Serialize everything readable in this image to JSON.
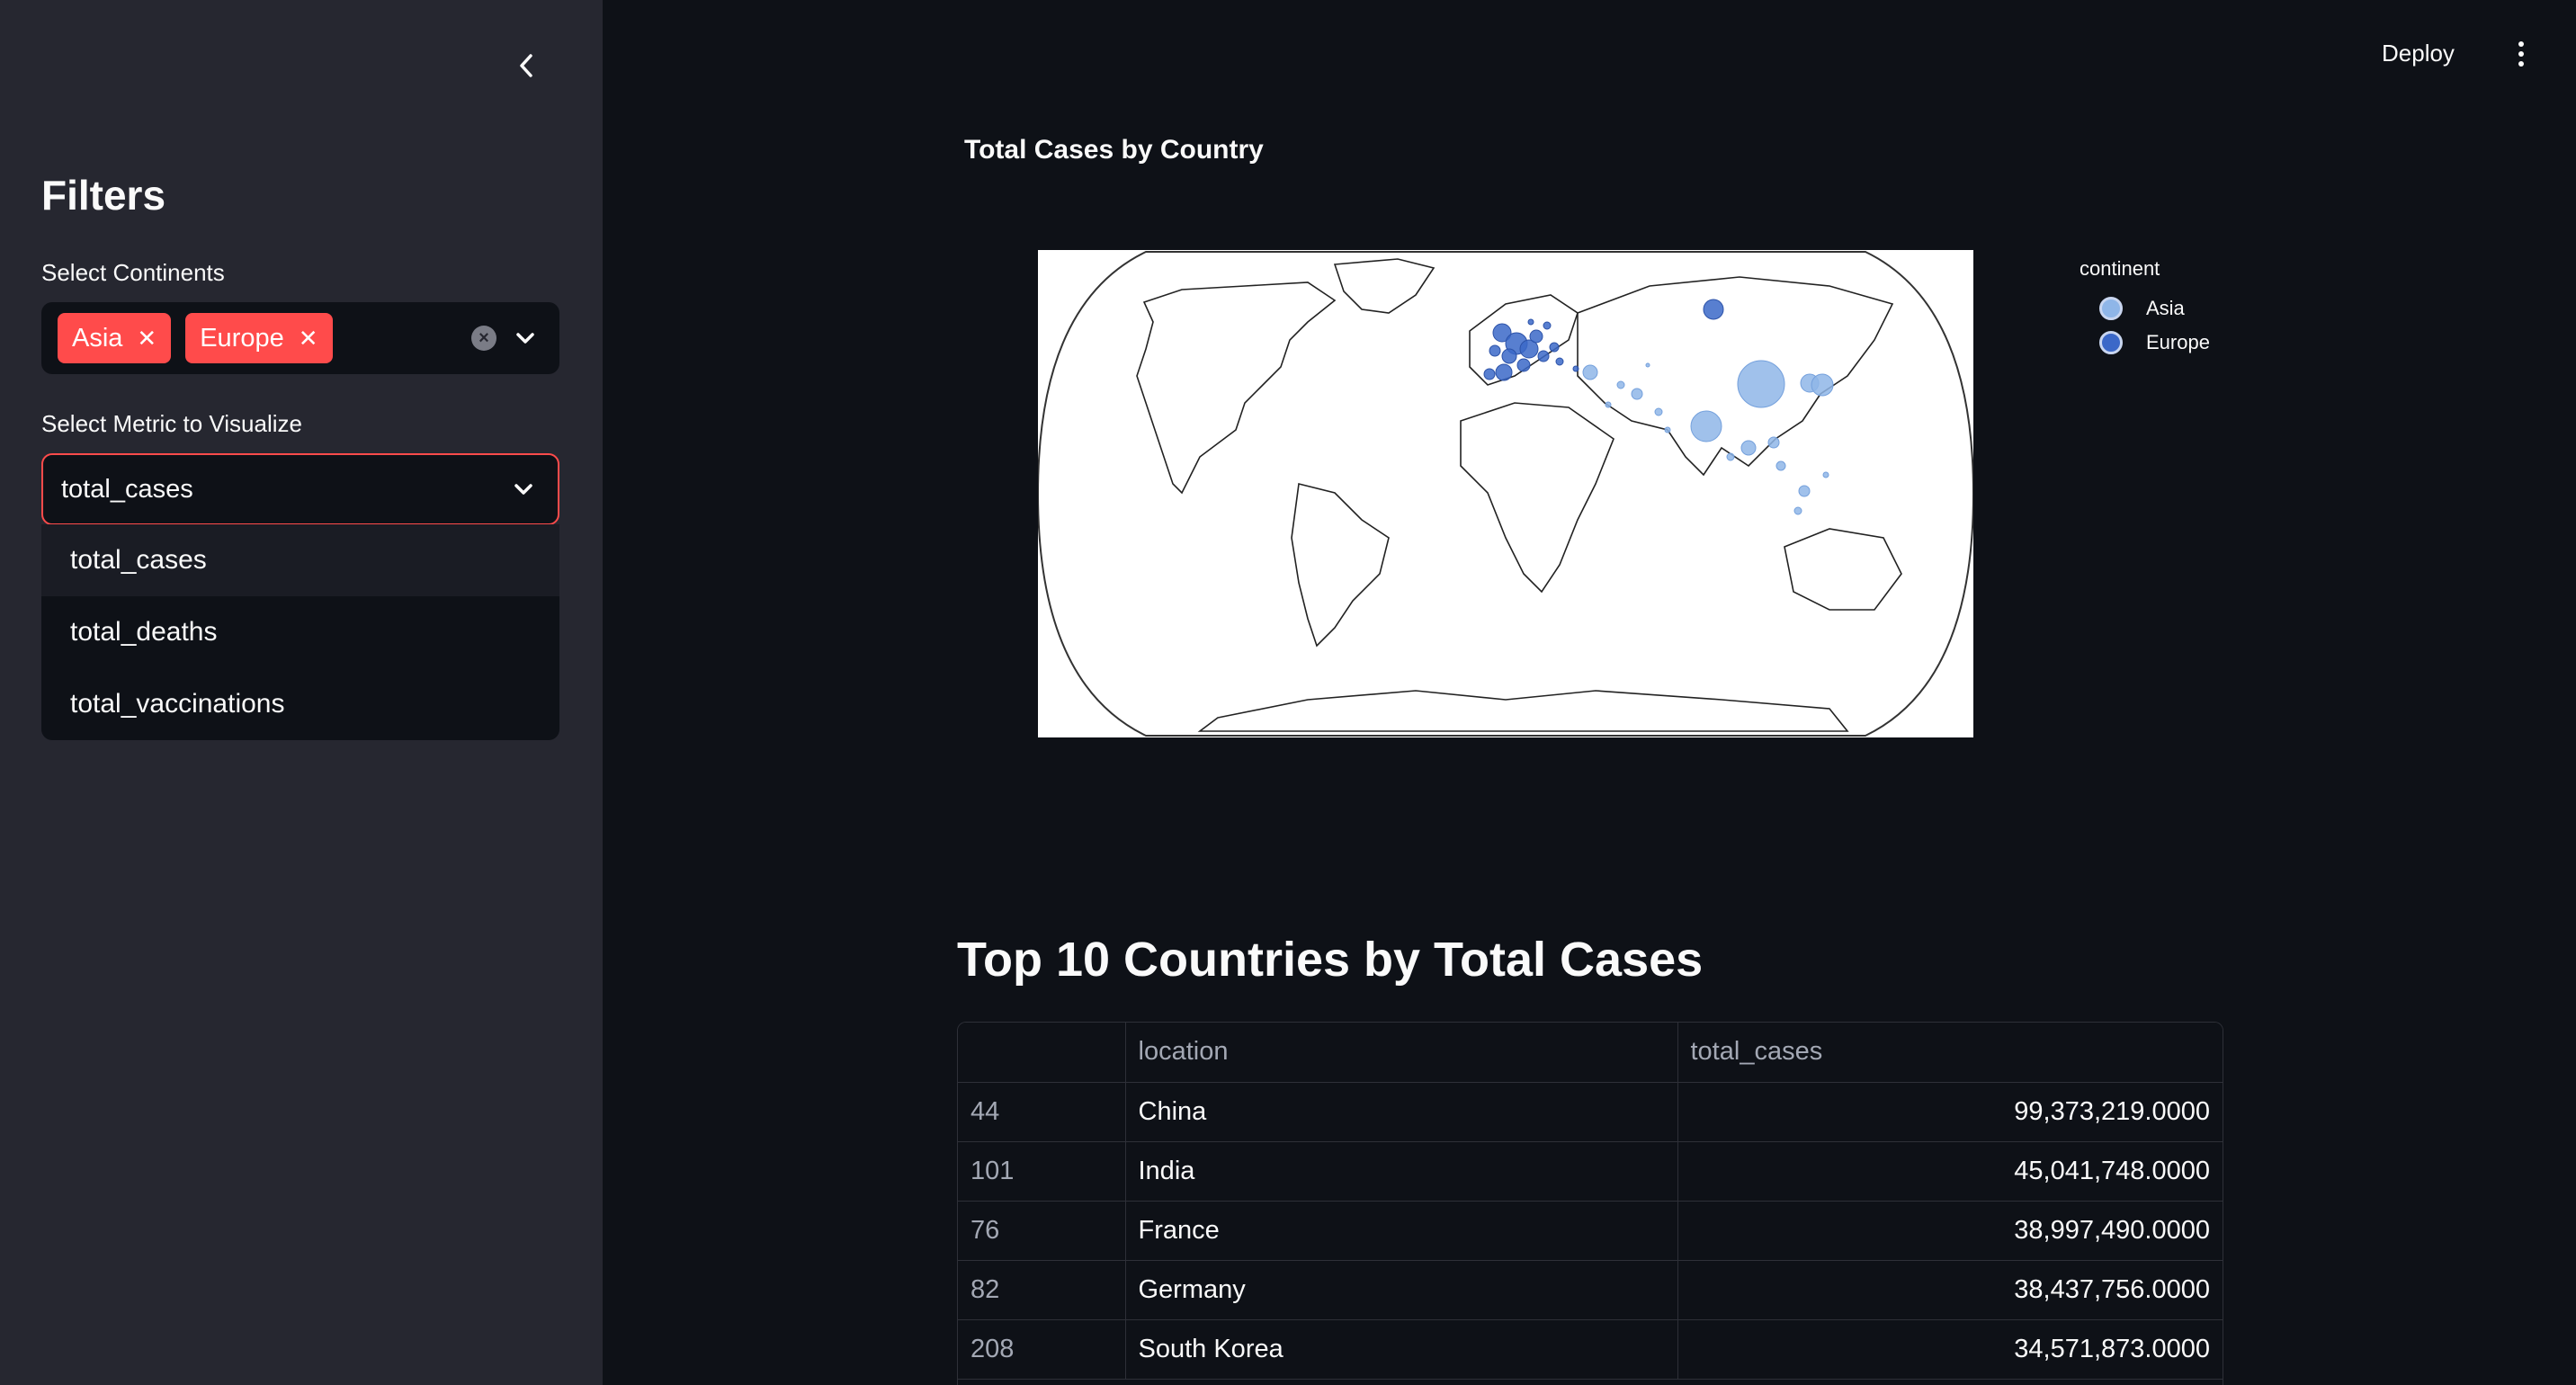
{
  "sidebar": {
    "title": "Filters",
    "continents_label": "Select Continents",
    "selected_continents": [
      "Asia",
      "Europe"
    ],
    "metric_label": "Select Metric to Visualize",
    "metric_value": "total_cases",
    "metric_options": [
      "total_cases",
      "total_deaths",
      "total_vaccinations"
    ]
  },
  "header": {
    "deploy_label": "Deploy"
  },
  "map": {
    "title": "Total Cases by Country",
    "legend_title": "continent",
    "legend_items": [
      {
        "name": "Asia",
        "color": "#8fb6e8"
      },
      {
        "name": "Europe",
        "color": "#3b68c8"
      }
    ]
  },
  "table": {
    "title": "Top 10 Countries by Total Cases",
    "columns": [
      "",
      "location",
      "total_cases"
    ],
    "rows": [
      {
        "index": "44",
        "location": "China",
        "total_cases": "99,373,219.0000"
      },
      {
        "index": "101",
        "location": "India",
        "total_cases": "45,041,748.0000"
      },
      {
        "index": "76",
        "location": "France",
        "total_cases": "38,997,490.0000"
      },
      {
        "index": "82",
        "location": "Germany",
        "total_cases": "38,437,756.0000"
      },
      {
        "index": "208",
        "location": "South Korea",
        "total_cases": "34,571,873.0000"
      }
    ]
  },
  "colors": {
    "accent": "#ff4b4b",
    "sidebar_bg": "#262730",
    "main_bg": "#0e1117",
    "asia_marker": "#8fb6e8",
    "europe_marker": "#3b68c8"
  }
}
